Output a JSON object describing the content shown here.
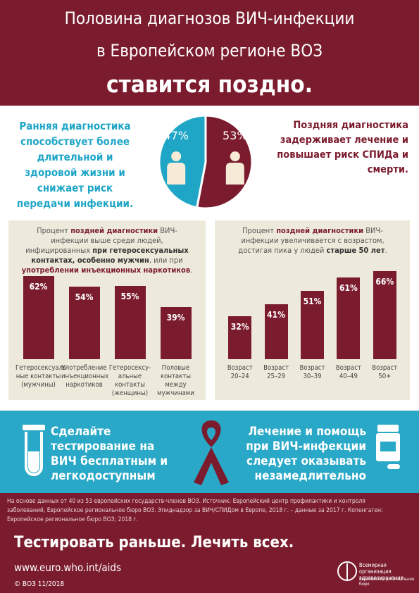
{
  "header": {
    "line1": "Половина диагнозов ВИЧ-инфекции",
    "line2": "в Европейском регионе ВОЗ",
    "line3": "ставится поздно."
  },
  "early": "Ранняя диагностика способствует более длительной и здоровой жизни и снижает риск передачи инфекции.",
  "late": "Поздняя диагностика задерживает лечение и повышает риск СПИДа и смерти.",
  "chart_data": [
    {
      "type": "pie",
      "values": [
        47,
        53
      ],
      "value_labels": [
        "47%",
        "53%"
      ],
      "colors": [
        "#1fa6c6",
        "#7b1c2e"
      ]
    },
    {
      "type": "bar",
      "subtitle_parts": [
        "Процент ",
        "поздней диагностики",
        " ВИЧ-инфекции выше среди людей, инфицированных ",
        "при гетеросексуальных контактах, особенно мужчин",
        ", или при ",
        "употреблении инъекционных наркотиков",
        "."
      ],
      "categories": [
        "Гетеросексуаль-\nные контакты\n(мужчины)",
        "Употребление\nинъекционных\nнаркотиков",
        "Гетеросексу-\nальные\nконтакты\n(женщины)",
        "Половые\nконтакты\nмежду\nмужчинами"
      ],
      "values": [
        62,
        54,
        55,
        39
      ],
      "value_labels": [
        "62%",
        "54%",
        "55%",
        "39%"
      ],
      "color": "#7b1c2e"
    },
    {
      "type": "bar",
      "subtitle_parts": [
        "Процент ",
        "поздней диагностики",
        " ВИЧ-инфекции увеличивается с возрастом, достигая пика у людей ",
        "старше 50 лет",
        "."
      ],
      "categories": [
        "Возраст\n20–24",
        "Возраст\n25–29",
        "Возраст\n30–39",
        "Возраст\n40–49",
        "Возраст\n50+"
      ],
      "values": [
        32,
        41,
        51,
        61,
        66
      ],
      "value_labels": [
        "32%",
        "41%",
        "51%",
        "61%",
        "66%"
      ],
      "color": "#7b1c2e"
    }
  ],
  "banner": {
    "left": "Сделайте тестирование на ВИЧ бесплатным и легкодоступным",
    "right": "Лечение и помощь при ВИЧ-инфекции следует оказывать незамедлительно"
  },
  "footer": {
    "source": "На основе данных от 40 из 53 европейских государств-членов ВОЗ. Источник: Европейский центр профилактики и контроля заболеваний, Европейское региональное бюро ВОЗ. Эпиднадзор за ВИЧ/СПИДом в Европе, 2018 г. – данные за 2017 г. Копенгаген: Европейское региональное бюро ВОЗ; 2018 г.",
    "slogan": "Тестировать раньше. Лечить всех.",
    "url": "www.euro.who.int/aids",
    "who": "Всемирная организация здравоохранения",
    "who_sub": "Европейское региональное бюро",
    "copyright": "© ВОЗ 11/2018"
  }
}
